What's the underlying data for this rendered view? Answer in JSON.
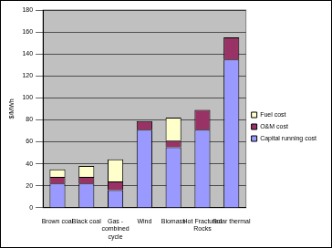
{
  "chart_data": {
    "type": "bar",
    "stacked": true,
    "y_label": "$/MWh",
    "categories": [
      "Brown coal",
      "Black coal",
      "Gas - combined cycle",
      "Wind",
      "Biomass",
      "Hot Fractured Rocks",
      "Solar thermal"
    ],
    "series": [
      {
        "name": "Capital running cost",
        "color": "#9999ff",
        "values": [
          22,
          22,
          16,
          71,
          55,
          71,
          135
        ]
      },
      {
        "name": "O&M cost",
        "color": "#993366",
        "values": [
          6,
          6,
          8,
          8,
          6,
          18,
          20
        ]
      },
      {
        "name": "Fuel cost",
        "color": "#ffffcc",
        "values": [
          7,
          10,
          20,
          0,
          21,
          0,
          0
        ]
      }
    ],
    "ylim": [
      0,
      180
    ],
    "yticks": [
      0,
      20,
      40,
      60,
      80,
      100,
      120,
      140,
      160,
      180
    ],
    "grid": true,
    "legend": "right"
  }
}
